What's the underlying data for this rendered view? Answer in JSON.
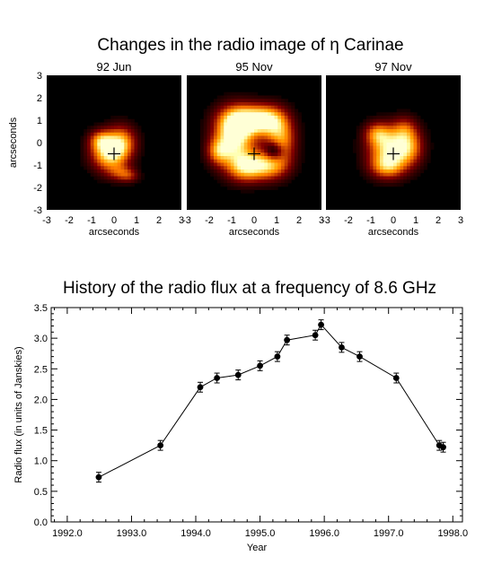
{
  "top_title": "Changes in the radio image of η Carinae",
  "bottom_title": "History of the radio flux at a frequency of 8.6 GHz",
  "chart_data": [
    {
      "type": "heatmap",
      "title": "Changes in the radio image of η Carinae",
      "panels": [
        {
          "label": "92 Jun",
          "marker_at": [
            0,
            -0.5
          ],
          "blobs": [
            {
              "x": -0.2,
              "y": -0.45,
              "sx": 0.55,
              "sy": 0.55,
              "a": 0.95
            },
            {
              "x": 0.35,
              "y": 0.05,
              "sx": 0.45,
              "sy": 0.5,
              "a": 0.55
            },
            {
              "x": -0.6,
              "y": 0.1,
              "sx": 0.35,
              "sy": 0.3,
              "a": 0.45
            },
            {
              "x": 0.3,
              "y": -1.35,
              "sx": 0.4,
              "sy": 0.25,
              "a": 0.35
            },
            {
              "x": 0.7,
              "y": -1.5,
              "sx": 0.3,
              "sy": 0.2,
              "a": 0.25
            }
          ]
        },
        {
          "label": "95 Nov",
          "marker_at": [
            0,
            -0.5
          ],
          "blobs": [
            {
              "x": -0.9,
              "y": 0.2,
              "sx": 0.6,
              "sy": 0.8,
              "a": 1.0
            },
            {
              "x": -0.4,
              "y": 1.0,
              "sx": 0.7,
              "sy": 0.45,
              "a": 0.85
            },
            {
              "x": 0.6,
              "y": 1.0,
              "sx": 0.55,
              "sy": 0.45,
              "a": 0.75
            },
            {
              "x": 1.2,
              "y": 0.1,
              "sx": 0.45,
              "sy": 0.7,
              "a": 0.7
            },
            {
              "x": 0.6,
              "y": -1.0,
              "sx": 0.6,
              "sy": 0.45,
              "a": 0.75
            },
            {
              "x": -0.4,
              "y": -1.1,
              "sx": 0.55,
              "sy": 0.45,
              "a": 0.7
            },
            {
              "x": -1.6,
              "y": -0.4,
              "sx": 0.35,
              "sy": 0.4,
              "a": 0.5
            },
            {
              "x": 0.9,
              "y": -0.4,
              "sx": 0.3,
              "sy": 0.3,
              "a": -0.6
            }
          ]
        },
        {
          "label": "97 Nov",
          "marker_at": [
            0,
            -0.5
          ],
          "blobs": [
            {
              "x": -0.15,
              "y": -0.35,
              "sx": 0.65,
              "sy": 0.65,
              "a": 0.9
            },
            {
              "x": -0.7,
              "y": 0.4,
              "sx": 0.4,
              "sy": 0.35,
              "a": 0.5
            },
            {
              "x": 0.7,
              "y": -0.2,
              "sx": 0.45,
              "sy": 0.55,
              "a": 0.5
            },
            {
              "x": 0.5,
              "y": 0.6,
              "sx": 0.4,
              "sy": 0.4,
              "a": 0.35
            },
            {
              "x": -0.3,
              "y": -1.1,
              "sx": 0.5,
              "sy": 0.35,
              "a": 0.45
            }
          ]
        }
      ],
      "xlabel": "arcseconds",
      "ylabel": "arcseconds",
      "xlim": [
        -3,
        3
      ],
      "ylim": [
        -3,
        3
      ],
      "ticks": [
        -3,
        -2,
        -1,
        0,
        1,
        2,
        3
      ]
    },
    {
      "type": "line",
      "title": "History of the radio flux at a frequency of 8.6 GHz",
      "xlabel": "Year",
      "ylabel": "Radio flux (in units of Janskies)",
      "xlim": [
        1991.75,
        1998.15
      ],
      "ylim": [
        0.0,
        3.5
      ],
      "x_ticks": [
        "1992.0",
        "1993.0",
        "1994.0",
        "1995.0",
        "1996.0",
        "1997.0",
        "1998.0"
      ],
      "y_ticks": [
        "0.0",
        "0.5",
        "1.0",
        "1.5",
        "2.0",
        "2.5",
        "3.0",
        "3.5"
      ],
      "x": [
        1992.49,
        1993.45,
        1994.07,
        1994.33,
        1994.66,
        1995.0,
        1995.27,
        1995.42,
        1995.86,
        1995.95,
        1996.27,
        1996.55,
        1997.12,
        1997.79,
        1997.85
      ],
      "y": [
        0.73,
        1.25,
        2.2,
        2.35,
        2.4,
        2.55,
        2.7,
        2.97,
        3.05,
        3.22,
        2.85,
        2.7,
        2.35,
        1.25,
        1.22
      ],
      "error": [
        0.08,
        0.08,
        0.08,
        0.08,
        0.08,
        0.08,
        0.08,
        0.08,
        0.08,
        0.08,
        0.08,
        0.08,
        0.08,
        0.08,
        0.08
      ]
    }
  ]
}
